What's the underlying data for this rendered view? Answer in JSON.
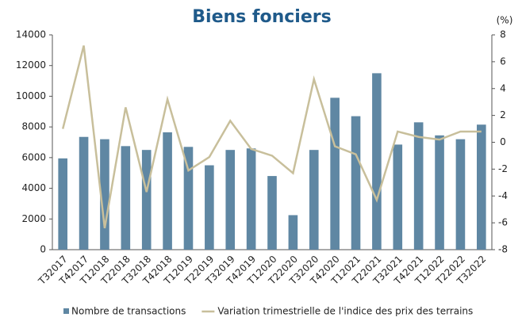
{
  "chart_data": {
    "type": "bar_line",
    "title": "Biens fonciers",
    "y2label": "(%)",
    "categories": [
      "T32017",
      "T42017",
      "T12018",
      "T22018",
      "T32018",
      "T42018",
      "T12019",
      "T22019",
      "T32019",
      "T42019",
      "T12020",
      "T22020",
      "T32020",
      "T42020",
      "T12021",
      "T22021",
      "T32021",
      "T42021",
      "T12022",
      "T22022",
      "T32022"
    ],
    "series": [
      {
        "name": "Nombre de transactions",
        "type": "bar",
        "axis": "y",
        "color": "#5f87a3",
        "values": [
          5950,
          7350,
          7200,
          6750,
          6500,
          7650,
          6700,
          5500,
          6500,
          6600,
          4800,
          2250,
          6500,
          9900,
          8700,
          11500,
          6850,
          8300,
          7450,
          7200,
          8150
        ]
      },
      {
        "name": "Variation trimestrielle de l'indice des prix des terrains",
        "type": "line",
        "axis": "y2",
        "color": "#c8bf9b",
        "values": [
          1.0,
          7.2,
          -6.4,
          2.6,
          -3.7,
          3.2,
          -2.1,
          -1.1,
          1.6,
          -0.5,
          -1.0,
          -2.3,
          4.7,
          -0.3,
          -0.9,
          -4.3,
          0.8,
          0.4,
          0.2,
          0.8,
          0.8
        ]
      }
    ],
    "ylim": [
      0,
      14000
    ],
    "yticks": [
      0,
      2000,
      4000,
      6000,
      8000,
      10000,
      12000,
      14000
    ],
    "y2lim": [
      -8,
      8
    ],
    "y2ticks": [
      -8,
      -6,
      -4,
      -2,
      0,
      2,
      4,
      6,
      8
    ],
    "grid": false,
    "legend": "bottom"
  }
}
